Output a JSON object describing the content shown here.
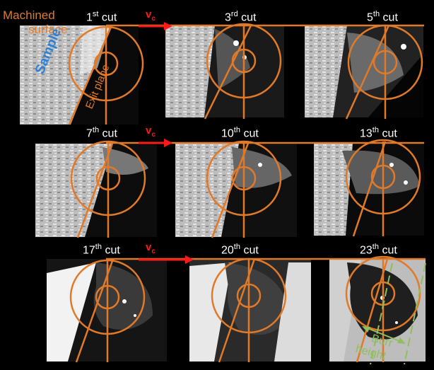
{
  "annotations": {
    "machined_surface_line1": "Machined",
    "machined_surface_line2": "surface",
    "sample": "Sample",
    "exit_plane": "Exit plane",
    "burr_height_line1": "Burr",
    "burr_height_line2": "height",
    "vc_symbol": "v",
    "vc_subscript": "c"
  },
  "cuts": [
    {
      "num": "1",
      "sup": "st",
      "word": "cut"
    },
    {
      "num": "3",
      "sup": "rd",
      "word": "cut"
    },
    {
      "num": "5",
      "sup": "th",
      "word": "cut"
    },
    {
      "num": "7",
      "sup": "th",
      "word": "cut"
    },
    {
      "num": "10",
      "sup": "th",
      "word": "cut"
    },
    {
      "num": "13",
      "sup": "th",
      "word": "cut"
    },
    {
      "num": "17",
      "sup": "th",
      "word": "cut"
    },
    {
      "num": "20",
      "sup": "th",
      "word": "cut"
    },
    {
      "num": "23",
      "sup": "th",
      "word": "cut"
    }
  ],
  "colors": {
    "background": "#000000",
    "overlay_orange": "#e07a28",
    "velocity_arrow": "#ff1a1a",
    "sample_label": "#2e7fd6",
    "burr_annotation": "#8fbf5a"
  }
}
